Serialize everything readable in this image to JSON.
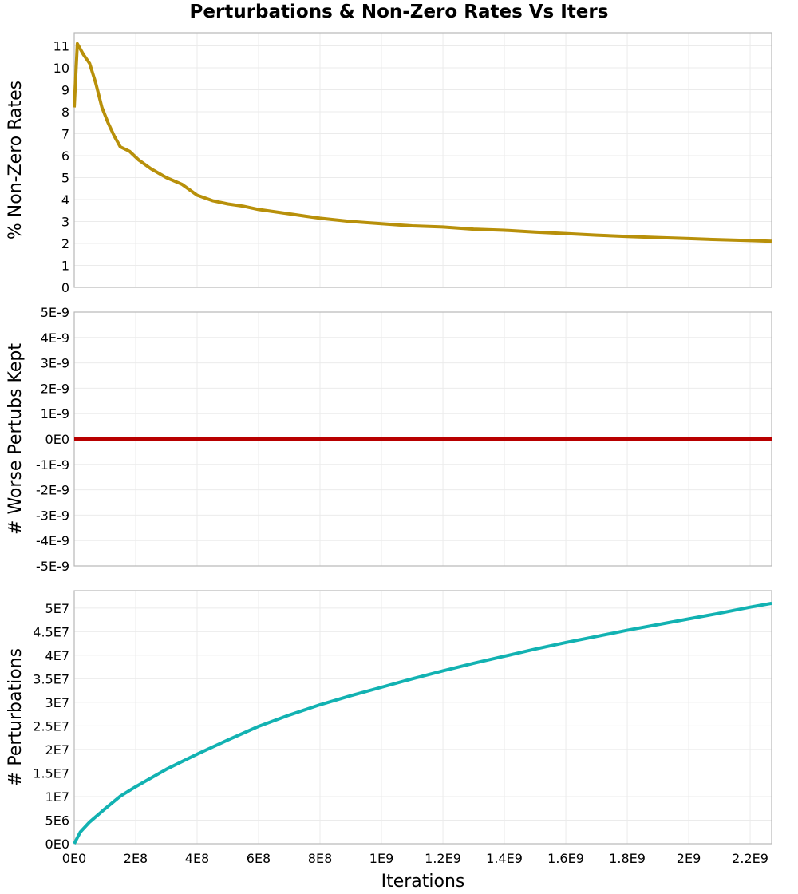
{
  "chart_data": {
    "title": "Perturbations & Non-Zero Rates Vs Iters",
    "type": "line",
    "xlabel": "Iterations",
    "x_ticks": [
      "0E0",
      "2E8",
      "4E8",
      "6E8",
      "8E8",
      "1E9",
      "1.2E9",
      "1.4E9",
      "1.6E9",
      "1.8E9",
      "2E9",
      "2.2E9"
    ],
    "x_tick_values": [
      0,
      200000000,
      400000000,
      600000000,
      800000000,
      1000000000,
      1200000000,
      1400000000,
      1600000000,
      1800000000,
      2000000000,
      2200000000
    ],
    "xlim": [
      0,
      2270000000
    ],
    "grid": true,
    "legend": "none",
    "panels": [
      {
        "name": "non-zero-rates",
        "ylabel": "% Non-Zero Rates",
        "ylim": [
          0,
          11.6
        ],
        "y_ticks": [
          "0",
          "1",
          "2",
          "3",
          "4",
          "5",
          "6",
          "7",
          "8",
          "9",
          "10",
          "11"
        ],
        "y_tick_values": [
          0,
          1,
          2,
          3,
          4,
          5,
          6,
          7,
          8,
          9,
          10,
          11
        ],
        "color": "#b8900a",
        "x": [
          0,
          10000000,
          30000000,
          50000000,
          70000000,
          90000000,
          110000000,
          130000000,
          150000000,
          180000000,
          210000000,
          250000000,
          300000000,
          350000000,
          400000000,
          450000000,
          500000000,
          550000000,
          600000000,
          650000000,
          700000000,
          800000000,
          900000000,
          1000000000,
          1100000000,
          1200000000,
          1300000000,
          1400000000,
          1500000000,
          1600000000,
          1700000000,
          1800000000,
          1900000000,
          2000000000,
          2100000000,
          2200000000,
          2270000000
        ],
        "y": [
          8.2,
          11.1,
          10.6,
          10.2,
          9.3,
          8.2,
          7.5,
          6.9,
          6.4,
          6.2,
          5.8,
          5.4,
          5.0,
          4.7,
          4.2,
          3.95,
          3.8,
          3.7,
          3.55,
          3.45,
          3.35,
          3.15,
          3.0,
          2.9,
          2.8,
          2.75,
          2.65,
          2.6,
          2.52,
          2.45,
          2.38,
          2.32,
          2.27,
          2.22,
          2.17,
          2.13,
          2.1
        ]
      },
      {
        "name": "worse-perturbs-kept",
        "ylabel": "# Worse Pertubs Kept",
        "ylim": [
          -5e-09,
          5e-09
        ],
        "y_ticks": [
          "-5E-9",
          "-4E-9",
          "-3E-9",
          "-2E-9",
          "-1E-9",
          "0E0",
          "1E-9",
          "2E-9",
          "3E-9",
          "4E-9",
          "5E-9"
        ],
        "y_tick_values": [
          -5e-09,
          -4e-09,
          -3e-09,
          -2e-09,
          -1e-09,
          0,
          1e-09,
          2e-09,
          3e-09,
          4e-09,
          5e-09
        ],
        "color": "#b80000",
        "x": [
          0,
          2270000000
        ],
        "y": [
          0,
          0
        ]
      },
      {
        "name": "perturbations",
        "ylabel": "# Perturbations",
        "ylim": [
          0,
          53700000
        ],
        "y_ticks": [
          "0E0",
          "5E6",
          "1E7",
          "1.5E7",
          "2E7",
          "2.5E7",
          "3E7",
          "3.5E7",
          "4E7",
          "4.5E7",
          "5E7"
        ],
        "y_tick_values": [
          0,
          5000000,
          10000000,
          15000000,
          20000000,
          25000000,
          30000000,
          35000000,
          40000000,
          45000000,
          50000000
        ],
        "color": "#12b2b2",
        "x": [
          0,
          20000000,
          50000000,
          100000000,
          150000000,
          200000000,
          300000000,
          400000000,
          500000000,
          600000000,
          700000000,
          800000000,
          900000000,
          1000000000,
          1100000000,
          1200000000,
          1300000000,
          1400000000,
          1500000000,
          1600000000,
          1700000000,
          1800000000,
          1900000000,
          2000000000,
          2100000000,
          2200000000,
          2270000000
        ],
        "y": [
          0,
          2500000,
          4600000,
          7400000,
          10100000,
          12100000,
          15800000,
          19000000,
          22000000,
          24900000,
          27300000,
          29500000,
          31400000,
          33200000,
          35000000,
          36700000,
          38300000,
          39800000,
          41300000,
          42700000,
          44000000,
          45300000,
          46500000,
          47700000,
          48900000,
          50200000,
          51000000
        ]
      }
    ]
  }
}
